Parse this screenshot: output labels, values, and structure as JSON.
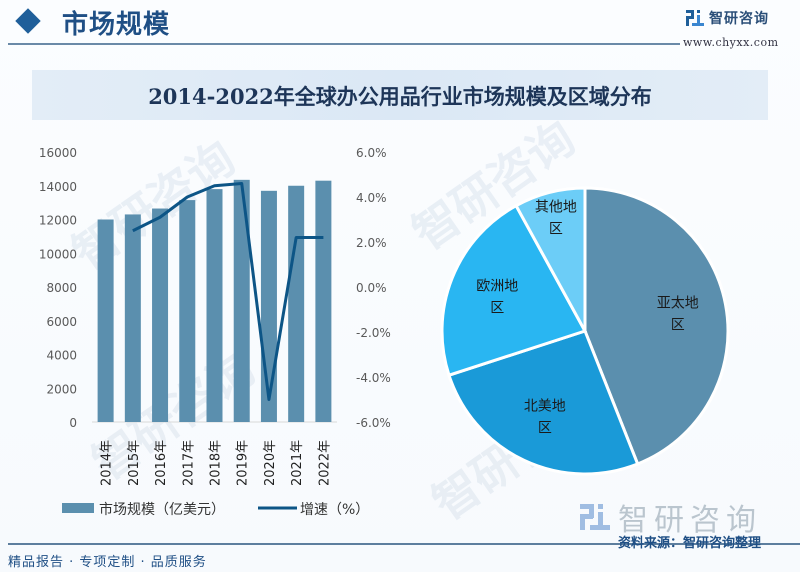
{
  "header": {
    "section_title": "市场规模",
    "logo_name": "智研咨询",
    "logo_url": "www.chyxx.com"
  },
  "title": "2014-2022年全球办公用品行业市场规模及区域分布",
  "colors": {
    "bar": "#5b8fae",
    "line": "#0d5586",
    "pie": [
      "#5b8fae",
      "#1a9ad8",
      "#29b6f2",
      "#6ccdf7"
    ]
  },
  "chart_data": [
    {
      "type": "bar",
      "title": "2014-2022年全球办公用品行业市场规模",
      "categories": [
        "2014年",
        "2015年",
        "2016年",
        "2017年",
        "2018年",
        "2019年",
        "2020年",
        "2021年",
        "2022年"
      ],
      "series": [
        {
          "name": "市场规模（亿美元）",
          "type": "bar",
          "axis": "left",
          "values": [
            12000,
            12300,
            12650,
            13150,
            13800,
            14350,
            13700,
            14000,
            14300
          ]
        },
        {
          "name": "增速（%）",
          "type": "line",
          "axis": "right",
          "values": [
            null,
            2.5,
            3.1,
            4.0,
            4.5,
            4.6,
            -5.0,
            2.2,
            2.2
          ]
        }
      ],
      "y_left": {
        "range": [
          0,
          16000
        ],
        "ticks": [
          "0",
          "2000",
          "4000",
          "6000",
          "8000",
          "10000",
          "12000",
          "14000",
          "16000"
        ],
        "tick_values": [
          0,
          2000,
          4000,
          6000,
          8000,
          10000,
          12000,
          14000,
          16000
        ]
      },
      "y_right": {
        "range": [
          -6,
          6
        ],
        "ticks": [
          "-6.0%",
          "-4.0%",
          "-2.0%",
          "0.0%",
          "2.0%",
          "4.0%",
          "6.0%"
        ],
        "tick_values": [
          -6,
          -4,
          -2,
          0,
          2,
          4,
          6
        ]
      },
      "grid": false,
      "legend": {
        "placement": "bottom",
        "items": [
          "市场规模（亿美元）",
          "增速（%）"
        ]
      }
    },
    {
      "type": "pie",
      "title": "全球办公用品行业区域分布",
      "labels": [
        "亚太地区",
        "北美地区",
        "欧洲地区",
        "其他地区"
      ],
      "label_lines": [
        [
          "亚太地",
          "区"
        ],
        [
          "北美地",
          "区"
        ],
        [
          "欧洲地",
          "区"
        ],
        [
          "其他地",
          "区"
        ]
      ],
      "values": [
        44,
        26,
        22,
        8
      ],
      "unit": "%",
      "start": "top",
      "direction": "clockwise"
    }
  ],
  "footer": {
    "tagline": "精品报告 · 专项定制 · 品质服务",
    "brand": "智研咨询",
    "source": "资料来源：智研咨询整理"
  }
}
